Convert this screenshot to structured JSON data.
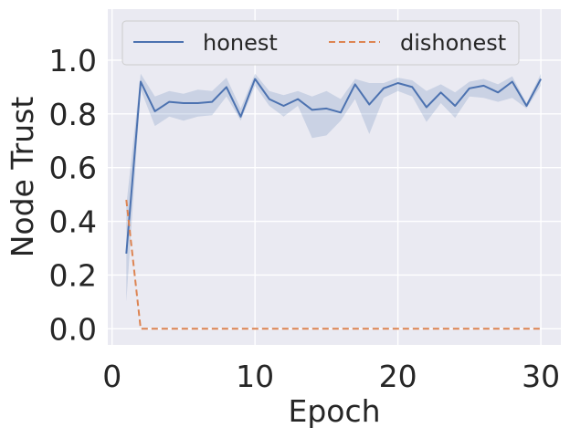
{
  "chart_data": {
    "type": "line",
    "xlabel": "Epoch",
    "ylabel": "Node Trust",
    "xlim": [
      -0.3,
      31.4
    ],
    "ylim": [
      -0.06,
      1.19
    ],
    "xticks": [
      0,
      10,
      20,
      30
    ],
    "xtick_labels": [
      "0",
      "10",
      "20",
      "30"
    ],
    "yticks": [
      0.0,
      0.2,
      0.4,
      0.6,
      0.8,
      1.0
    ],
    "ytick_labels": [
      "0.0",
      "0.2",
      "0.4",
      "0.6",
      "0.8",
      "1.0"
    ],
    "grid": true,
    "legend_position": "top",
    "x": [
      1,
      2,
      3,
      4,
      5,
      6,
      7,
      8,
      9,
      10,
      11,
      12,
      13,
      14,
      15,
      16,
      17,
      18,
      19,
      20,
      21,
      22,
      23,
      24,
      25,
      26,
      27,
      28,
      29,
      30
    ],
    "series": [
      {
        "name": "honest",
        "color": "#4c72b0",
        "linestyle": "solid",
        "values": [
          0.28,
          0.92,
          0.81,
          0.845,
          0.84,
          0.84,
          0.845,
          0.9,
          0.79,
          0.93,
          0.855,
          0.83,
          0.855,
          0.815,
          0.82,
          0.805,
          0.91,
          0.835,
          0.895,
          0.915,
          0.9,
          0.825,
          0.88,
          0.83,
          0.895,
          0.905,
          0.88,
          0.92,
          0.83,
          0.93
        ],
        "band_low": [
          0.1,
          0.89,
          0.755,
          0.79,
          0.775,
          0.79,
          0.795,
          0.865,
          0.775,
          0.905,
          0.83,
          0.79,
          0.83,
          0.71,
          0.72,
          0.775,
          0.855,
          0.725,
          0.86,
          0.885,
          0.865,
          0.77,
          0.84,
          0.785,
          0.865,
          0.86,
          0.845,
          0.86,
          0.82,
          0.905
        ],
        "band_high": [
          0.46,
          0.95,
          0.865,
          0.885,
          0.875,
          0.89,
          0.885,
          0.935,
          0.82,
          0.95,
          0.885,
          0.87,
          0.885,
          0.865,
          0.885,
          0.855,
          0.93,
          0.915,
          0.915,
          0.935,
          0.925,
          0.885,
          0.91,
          0.88,
          0.92,
          0.93,
          0.91,
          0.94,
          0.84,
          0.95
        ]
      },
      {
        "name": "dishonest",
        "color": "#dd8452",
        "linestyle": "dashed",
        "values": [
          0.48,
          0.0,
          0.0,
          0.0,
          0.0,
          0.0,
          0.0,
          0.0,
          0.0,
          0.0,
          0.0,
          0.0,
          0.0,
          0.0,
          0.0,
          0.0,
          0.0,
          0.0,
          0.0,
          0.0,
          0.0,
          0.0,
          0.0,
          0.0,
          0.0,
          0.0,
          0.0,
          0.0,
          0.0,
          0.0
        ]
      }
    ]
  }
}
